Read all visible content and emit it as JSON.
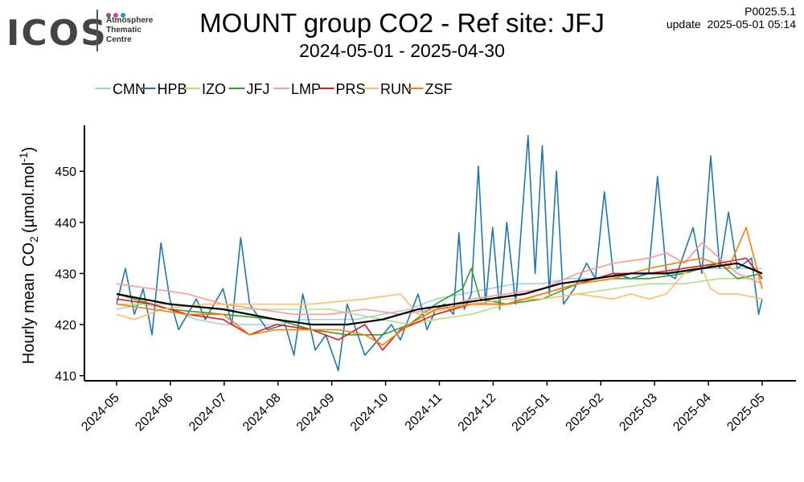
{
  "header": {
    "logo_word": "ICOS",
    "logo_lines": [
      "Atmosphere",
      "Thematic",
      "Centre"
    ],
    "logo_dot_colors": [
      "#9b4fa2",
      "#e8418c",
      "#1f9ad6"
    ],
    "version": "P0025.5.1",
    "update": "update  2025-05-01 05:14"
  },
  "chart_data": {
    "type": "line",
    "title": "MOUNT group CO2 - Ref site: JFJ",
    "subtitle": "2024-05-01 - 2025-04-30",
    "ylabel": "Hourly mean",
    "ylabel_species": "CO",
    "ylabel_subscript": "2",
    "ylabel_unit": "(µmol.mol",
    "ylabel_superscript": "-1",
    "ylabel_close": ")",
    "ylim": [
      409,
      459
    ],
    "yticks": [
      410,
      420,
      430,
      440,
      450
    ],
    "xlim": [
      "2024-05-01",
      "2025-04-30"
    ],
    "xticks": [
      "2024-05",
      "2024-06",
      "2024-07",
      "2024-08",
      "2024-09",
      "2024-10",
      "2024-11",
      "2024-12",
      "2025-01",
      "2025-02",
      "2025-03",
      "2025-04",
      "2025-05"
    ],
    "legend_position": "top-left",
    "grid": false,
    "series": [
      {
        "name": "CMN",
        "color": "#a6cee3",
        "values": [
          [
            0,
            423
          ],
          [
            15,
            424
          ],
          [
            30,
            423
          ],
          [
            45,
            421
          ],
          [
            60,
            420
          ],
          [
            75,
            420
          ],
          [
            90,
            420
          ],
          [
            105,
            421
          ],
          [
            120,
            421
          ],
          [
            135,
            421
          ],
          [
            150,
            422
          ],
          [
            165,
            423
          ],
          [
            180,
            425
          ],
          [
            195,
            426
          ],
          [
            210,
            427
          ],
          [
            225,
            428
          ],
          [
            240,
            428
          ],
          [
            255,
            429
          ],
          [
            270,
            429
          ],
          [
            285,
            430
          ],
          [
            300,
            430
          ],
          [
            315,
            430
          ],
          [
            330,
            431
          ],
          [
            345,
            431
          ],
          [
            364,
            431
          ]
        ]
      },
      {
        "name": "HPB",
        "color": "#1f78b4",
        "values": [
          [
            0,
            424
          ],
          [
            5,
            431
          ],
          [
            10,
            422
          ],
          [
            15,
            427
          ],
          [
            20,
            418
          ],
          [
            25,
            436
          ],
          [
            30,
            425
          ],
          [
            35,
            419
          ],
          [
            45,
            425
          ],
          [
            50,
            421
          ],
          [
            60,
            427
          ],
          [
            65,
            420
          ],
          [
            70,
            437
          ],
          [
            75,
            424
          ],
          [
            85,
            419
          ],
          [
            95,
            420
          ],
          [
            100,
            414
          ],
          [
            105,
            426
          ],
          [
            112,
            415
          ],
          [
            118,
            418
          ],
          [
            125,
            411
          ],
          [
            130,
            424
          ],
          [
            140,
            414
          ],
          [
            150,
            418
          ],
          [
            155,
            420
          ],
          [
            160,
            417
          ],
          [
            170,
            426
          ],
          [
            175,
            419
          ],
          [
            180,
            423
          ],
          [
            185,
            424
          ],
          [
            190,
            422
          ],
          [
            193,
            438
          ],
          [
            196,
            423
          ],
          [
            200,
            426
          ],
          [
            204,
            451
          ],
          [
            208,
            424
          ],
          [
            212,
            439
          ],
          [
            216,
            423
          ],
          [
            220,
            440
          ],
          [
            225,
            424
          ],
          [
            232,
            457
          ],
          [
            236,
            430
          ],
          [
            240,
            455
          ],
          [
            244,
            426
          ],
          [
            248,
            450
          ],
          [
            252,
            424
          ],
          [
            258,
            427
          ],
          [
            265,
            432
          ],
          [
            270,
            429
          ],
          [
            275,
            446
          ],
          [
            280,
            430
          ],
          [
            290,
            429
          ],
          [
            300,
            430
          ],
          [
            305,
            449
          ],
          [
            310,
            430
          ],
          [
            315,
            429
          ],
          [
            325,
            439
          ],
          [
            330,
            430
          ],
          [
            335,
            453
          ],
          [
            340,
            431
          ],
          [
            345,
            442
          ],
          [
            350,
            431
          ],
          [
            358,
            433
          ],
          [
            362,
            422
          ],
          [
            364,
            425
          ]
        ]
      },
      {
        "name": "IZO",
        "color": "#b2df8a",
        "values": [
          [
            0,
            424
          ],
          [
            30,
            424
          ],
          [
            60,
            423
          ],
          [
            90,
            423
          ],
          [
            120,
            423
          ],
          [
            150,
            421
          ],
          [
            165,
            420
          ],
          [
            180,
            421
          ],
          [
            200,
            422
          ],
          [
            220,
            424
          ],
          [
            240,
            425
          ],
          [
            260,
            426
          ],
          [
            280,
            427
          ],
          [
            300,
            428
          ],
          [
            320,
            428
          ],
          [
            340,
            429
          ],
          [
            364,
            429
          ]
        ]
      },
      {
        "name": "JFJ",
        "color": "#33a02c",
        "values": [
          [
            0,
            426
          ],
          [
            30,
            423
          ],
          [
            60,
            422
          ],
          [
            90,
            421
          ],
          [
            110,
            419
          ],
          [
            130,
            418
          ],
          [
            150,
            418
          ],
          [
            165,
            420
          ],
          [
            180,
            424
          ],
          [
            195,
            427
          ],
          [
            200,
            431
          ],
          [
            205,
            425
          ],
          [
            220,
            424
          ],
          [
            240,
            425
          ],
          [
            260,
            428
          ],
          [
            280,
            429
          ],
          [
            300,
            429
          ],
          [
            320,
            430
          ],
          [
            340,
            432
          ],
          [
            350,
            429
          ],
          [
            364,
            430
          ]
        ]
      },
      {
        "name": "LMP",
        "color": "#fb9a99",
        "values": [
          [
            0,
            428
          ],
          [
            20,
            427
          ],
          [
            40,
            426
          ],
          [
            60,
            424
          ],
          [
            80,
            423
          ],
          [
            100,
            422
          ],
          [
            120,
            422
          ],
          [
            140,
            423
          ],
          [
            160,
            422
          ],
          [
            180,
            423
          ],
          [
            200,
            425
          ],
          [
            220,
            426
          ],
          [
            240,
            427
          ],
          [
            260,
            430
          ],
          [
            280,
            432
          ],
          [
            300,
            433
          ],
          [
            310,
            434
          ],
          [
            320,
            432
          ],
          [
            330,
            436
          ],
          [
            340,
            433
          ],
          [
            350,
            430
          ],
          [
            364,
            428
          ]
        ]
      },
      {
        "name": "PRS",
        "color": "#e31a1c",
        "values": [
          [
            0,
            425
          ],
          [
            20,
            424
          ],
          [
            40,
            422
          ],
          [
            60,
            421
          ],
          [
            75,
            418
          ],
          [
            90,
            420
          ],
          [
            110,
            419
          ],
          [
            125,
            417
          ],
          [
            140,
            420
          ],
          [
            150,
            415
          ],
          [
            160,
            419
          ],
          [
            180,
            422
          ],
          [
            200,
            424
          ],
          [
            220,
            424
          ],
          [
            240,
            426
          ],
          [
            260,
            428
          ],
          [
            280,
            430
          ],
          [
            300,
            430
          ],
          [
            320,
            431
          ],
          [
            340,
            432
          ],
          [
            355,
            433
          ],
          [
            364,
            429
          ]
        ]
      },
      {
        "name": "RUN",
        "color": "#fdbf6f",
        "values": [
          [
            0,
            422
          ],
          [
            10,
            421
          ],
          [
            25,
            423
          ],
          [
            50,
            424
          ],
          [
            80,
            424
          ],
          [
            110,
            424
          ],
          [
            140,
            425
          ],
          [
            160,
            426
          ],
          [
            170,
            422
          ],
          [
            185,
            423
          ],
          [
            200,
            424
          ],
          [
            220,
            425
          ],
          [
            240,
            425
          ],
          [
            260,
            426
          ],
          [
            280,
            425
          ],
          [
            290,
            426
          ],
          [
            300,
            425
          ],
          [
            310,
            426
          ],
          [
            320,
            430
          ],
          [
            325,
            431
          ],
          [
            330,
            431
          ],
          [
            335,
            427
          ],
          [
            340,
            426
          ],
          [
            350,
            426
          ],
          [
            364,
            425
          ]
        ]
      },
      {
        "name": "ZSF",
        "color": "#ff7f00",
        "values": [
          [
            0,
            424
          ],
          [
            20,
            423
          ],
          [
            40,
            422
          ],
          [
            60,
            422
          ],
          [
            75,
            418
          ],
          [
            90,
            419
          ],
          [
            110,
            419
          ],
          [
            125,
            419
          ],
          [
            140,
            418
          ],
          [
            150,
            416
          ],
          [
            165,
            420
          ],
          [
            180,
            423
          ],
          [
            200,
            424
          ],
          [
            220,
            424
          ],
          [
            240,
            426
          ],
          [
            260,
            428
          ],
          [
            280,
            429
          ],
          [
            300,
            431
          ],
          [
            315,
            432
          ],
          [
            330,
            433
          ],
          [
            345,
            431
          ],
          [
            355,
            439
          ],
          [
            364,
            427
          ]
        ]
      }
    ],
    "trend": {
      "color": "#000000",
      "values": [
        [
          0,
          426
        ],
        [
          30,
          424
        ],
        [
          60,
          423
        ],
        [
          90,
          421
        ],
        [
          110,
          420
        ],
        [
          130,
          420
        ],
        [
          150,
          421
        ],
        [
          170,
          423
        ],
        [
          190,
          424
        ],
        [
          210,
          425
        ],
        [
          230,
          426
        ],
        [
          250,
          428
        ],
        [
          270,
          429
        ],
        [
          290,
          430
        ],
        [
          310,
          430
        ],
        [
          330,
          431
        ],
        [
          350,
          432
        ],
        [
          364,
          430
        ]
      ]
    }
  }
}
